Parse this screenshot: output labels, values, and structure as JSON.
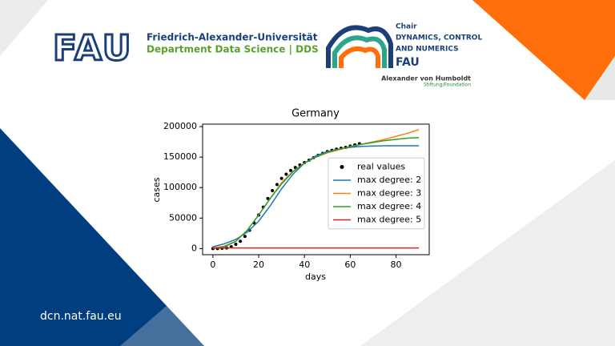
{
  "header": {
    "logo_left": "FAU",
    "university": "Friedrich-Alexander-Universität",
    "department": "Department Data Science | DDS",
    "chair_lines": [
      "Chair",
      "DYNAMICS, CONTROL",
      "AND NUMERICS"
    ],
    "chair_fau": "FAU",
    "humboldt": "Alexander von Humboldt",
    "foundation": "Stiftung/Foundation"
  },
  "footer": {
    "url": "dcn.nat.fau.eu"
  },
  "chart_data": {
    "type": "line",
    "title": "Germany",
    "xlabel": "days",
    "ylabel": "cases",
    "xlim": [
      -4.5,
      94.5
    ],
    "ylim": [
      -10000,
      204000
    ],
    "xticks": [
      0,
      20,
      40,
      60,
      80
    ],
    "yticks": [
      0,
      50000,
      100000,
      150000,
      200000
    ],
    "legend": "center right",
    "grid": false,
    "series": [
      {
        "name": "real values",
        "color": "#000000",
        "style": "points",
        "x": [
          0,
          2,
          4,
          6,
          8,
          10,
          12,
          14,
          16,
          18,
          20,
          22,
          24,
          26,
          28,
          30,
          32,
          34,
          36,
          38,
          40,
          42,
          44,
          46,
          48,
          50,
          52,
          54,
          56,
          58,
          60,
          62,
          64
        ],
        "values": [
          0,
          0,
          500,
          1000,
          3000,
          7000,
          12000,
          20000,
          30000,
          42000,
          55000,
          68000,
          82000,
          95000,
          105000,
          115000,
          122000,
          128000,
          133000,
          137000,
          141000,
          145000,
          149000,
          153000,
          156000,
          159000,
          161000,
          163000,
          164500,
          166000,
          168000,
          170000,
          172000
        ]
      },
      {
        "name": "max degree: 2",
        "color": "#1f77b4",
        "style": "line",
        "x": [
          0,
          5,
          10,
          15,
          20,
          25,
          30,
          35,
          40,
          45,
          50,
          55,
          60,
          65,
          70,
          75,
          80,
          85,
          90
        ],
        "values": [
          3000,
          8000,
          15000,
          27000,
          45000,
          70000,
          98000,
          122000,
          140000,
          152000,
          159000,
          163000,
          166000,
          167500,
          168000,
          168500,
          168500,
          168500,
          168500
        ]
      },
      {
        "name": "max degree: 3",
        "color": "#ff7f0e",
        "style": "line",
        "x": [
          0,
          5,
          10,
          15,
          20,
          25,
          30,
          35,
          40,
          45,
          50,
          55,
          60,
          65,
          70,
          75,
          80,
          85,
          90
        ],
        "values": [
          1000,
          4000,
          12000,
          30000,
          55000,
          82000,
          108000,
          127000,
          140000,
          150000,
          157000,
          162000,
          167000,
          171000,
          175000,
          179000,
          184000,
          189000,
          195000
        ]
      },
      {
        "name": "max degree: 4",
        "color": "#2ca02c",
        "style": "line",
        "x": [
          0,
          5,
          10,
          15,
          20,
          25,
          30,
          35,
          40,
          45,
          50,
          55,
          60,
          65,
          70,
          75,
          80,
          85,
          90
        ],
        "values": [
          0,
          3000,
          12000,
          30000,
          55000,
          82000,
          106000,
          126000,
          140000,
          150000,
          158000,
          163000,
          167000,
          171000,
          174000,
          177000,
          179000,
          181000,
          182000
        ]
      },
      {
        "name": "max degree: 5",
        "color": "#d62728",
        "style": "line",
        "x": [
          0,
          5,
          10,
          15,
          20,
          25,
          30,
          35,
          40,
          45,
          50,
          55,
          60,
          65,
          70,
          75,
          80,
          85,
          90
        ],
        "values": [
          1000,
          1000,
          1000,
          1000,
          1000,
          1000,
          1000,
          1000,
          1000,
          1000,
          1000,
          1000,
          1000,
          1000,
          1000,
          1000,
          1000,
          1000,
          1000
        ]
      }
    ]
  }
}
